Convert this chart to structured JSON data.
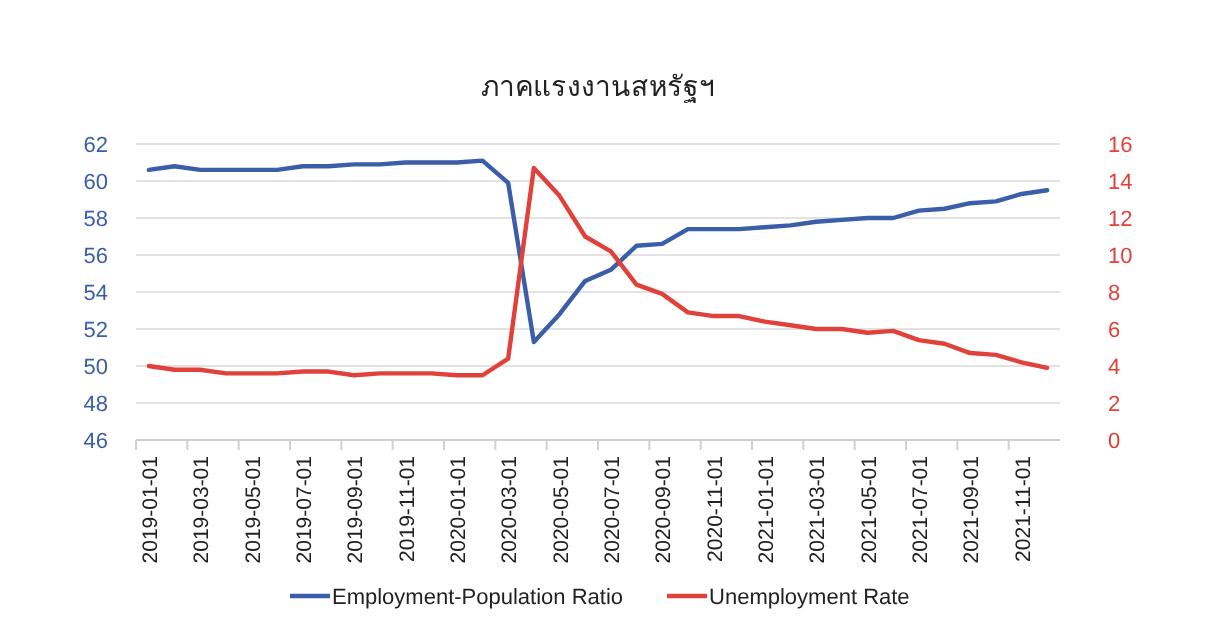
{
  "chart_data": {
    "type": "line",
    "title": "ภาคแรงงานสหรัฐฯ",
    "categories": [
      "2019-01-01",
      null,
      "2019-03-01",
      null,
      "2019-05-01",
      null,
      "2019-07-01",
      null,
      "2019-09-01",
      null,
      "2019-11-01",
      null,
      "2020-01-01",
      null,
      "2020-03-01",
      null,
      "2020-05-01",
      null,
      "2020-07-01",
      null,
      "2020-09-01",
      null,
      "2020-11-01",
      null,
      "2021-01-01",
      null,
      "2021-03-01",
      null,
      "2021-05-01",
      null,
      "2021-07-01",
      null,
      "2021-09-01",
      null,
      "2021-11-01",
      null
    ],
    "series": [
      {
        "name": "Employment-Population Ratio",
        "color": "#3a5ea8",
        "values": [
          60.6,
          60.8,
          60.6,
          60.6,
          60.6,
          60.6,
          60.8,
          60.8,
          60.9,
          60.9,
          61.0,
          61.0,
          61.0,
          61.1,
          59.9,
          51.3,
          52.8,
          54.6,
          55.2,
          56.5,
          56.6,
          57.4,
          57.4,
          57.4,
          57.5,
          57.6,
          57.8,
          57.9,
          58.0,
          58.0,
          58.4,
          58.5,
          58.8,
          58.9,
          59.3,
          59.5
        ]
      },
      {
        "name": "Unemployment Rate",
        "color": "#e0413a",
        "axis": "y2",
        "values": [
          4.0,
          3.8,
          3.8,
          3.6,
          3.6,
          3.6,
          3.7,
          3.7,
          3.5,
          3.6,
          3.6,
          3.6,
          3.5,
          3.5,
          4.4,
          14.7,
          13.2,
          11.0,
          10.2,
          8.4,
          7.9,
          6.9,
          6.7,
          6.7,
          6.4,
          6.2,
          6.0,
          6.0,
          5.8,
          5.9,
          5.4,
          5.2,
          4.7,
          4.6,
          4.2,
          3.9
        ]
      }
    ],
    "ylim": [
      46,
      62
    ],
    "yticks": [
      46,
      48,
      50,
      52,
      54,
      56,
      58,
      60,
      62
    ],
    "y2lim": [
      0,
      16
    ],
    "y2ticks": [
      0,
      2,
      4,
      6,
      8,
      10,
      12,
      14,
      16
    ],
    "grid": "y",
    "legend": "bottom"
  }
}
